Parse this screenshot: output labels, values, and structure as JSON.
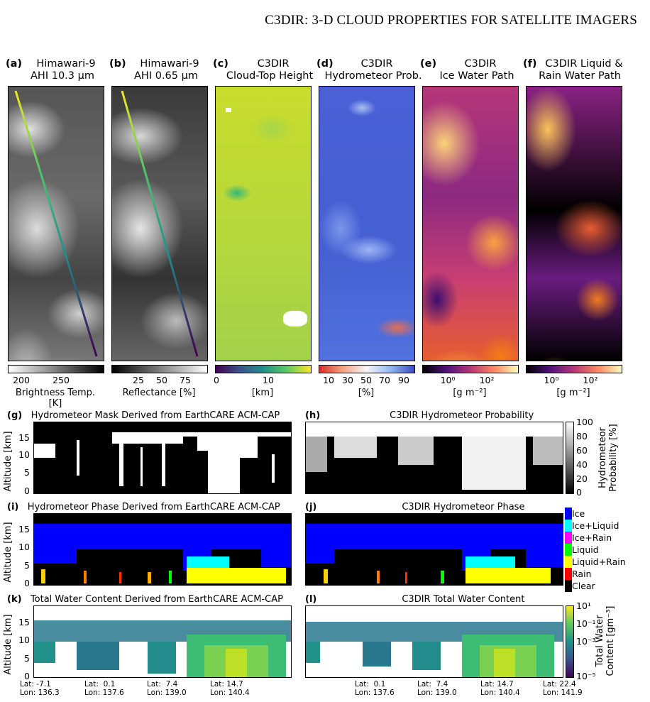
{
  "running_head": "C3DIR: 3-D CLOUD PROPERTIES FOR SATELLITE IMAGERS",
  "top_panels": [
    {
      "label": "(a)",
      "line1": "Himawari-9",
      "line2": "AHI 10.3 μm",
      "colorbar_label": "Brightness Temp. [K]",
      "ticks": [
        "200",
        "250"
      ]
    },
    {
      "label": "(b)",
      "line1": "Himawari-9",
      "line2": "AHI 0.65 μm",
      "colorbar_label": "Reflectance [%]",
      "ticks": [
        "25",
        "50",
        "75"
      ]
    },
    {
      "label": "(c)",
      "line1": "C3DIR",
      "line2": "Cloud-Top Height",
      "colorbar_label": "[km]",
      "ticks": [
        "0",
        "10"
      ]
    },
    {
      "label": "(d)",
      "line1": "C3DIR",
      "line2": "Hydrometeor Prob.",
      "colorbar_label": "[%]",
      "ticks": [
        "10",
        "30",
        "50",
        "70",
        "90"
      ]
    },
    {
      "label": "(e)",
      "line1": "C3DIR",
      "line2": "Ice Water Path",
      "colorbar_label": "[g m⁻²]",
      "ticks": [
        "10⁰",
        "10²"
      ]
    },
    {
      "label": "(f)",
      "line1": "C3DIR Liquid &",
      "line2": "Rain Water Path",
      "colorbar_label": "[g m⁻²]",
      "ticks": [
        "10⁰",
        "10²"
      ]
    }
  ],
  "sections": {
    "g": {
      "label": "(g)",
      "title": "Hydrometeor Mask Derived from EarthCARE ACM-CAP"
    },
    "h": {
      "label": "(h)",
      "title": "C3DIR Hydrometeor Probability"
    },
    "i": {
      "label": "(i)",
      "title": "Hydrometeor Phase Derived from EarthCARE ACM-CAP"
    },
    "j": {
      "label": "(j)",
      "title": "C3DIR Hydrometeor Phase"
    },
    "k": {
      "label": "(k)",
      "title": "Total Water Content Derived from EarthCARE ACM-CAP"
    },
    "l": {
      "label": "(l)",
      "title": "C3DIR Total Water Content"
    }
  },
  "altitude_label": "Altitude [km]",
  "altitude_ticks": [
    "15",
    "10",
    "5",
    "0"
  ],
  "prob_colorbar": {
    "label_line1": "Hydrometeor",
    "label_line2": "Probability [%]",
    "ticks": [
      "100",
      "80",
      "60",
      "40",
      "20",
      "0"
    ]
  },
  "phase_legend": [
    {
      "name": "Ice",
      "color": "#0000ff"
    },
    {
      "name": "Ice+Liquid",
      "color": "#00ffff"
    },
    {
      "name": "Ice+Rain",
      "color": "#ff00ff"
    },
    {
      "name": "Liquid",
      "color": "#00ff00"
    },
    {
      "name": "Liquid+Rain",
      "color": "#ffff00"
    },
    {
      "name": "Rain",
      "color": "#ff0000"
    },
    {
      "name": "Clear",
      "color": "#000000"
    }
  ],
  "twc_colorbar": {
    "label_line1": "Total Water",
    "label_line2": "Content [gm⁻³]",
    "ticks": [
      "10¹",
      "10⁻¹",
      "10⁻³",
      "10⁻⁵"
    ]
  },
  "xticks_left": [
    "Lat: -7.1\nLon: 136.3",
    "Lat:  0.1\nLon: 137.6",
    "Lat:  7.4\nLon: 139.0",
    "Lat: 14.7\nLon: 140.4"
  ],
  "xticks_right": [
    "Lat:  0.1\nLon: 137.6",
    "Lat:  7.4\nLon: 139.0",
    "Lat: 14.7\nLon: 140.4",
    "Lat: 22.4\nLon: 141.9"
  ]
}
